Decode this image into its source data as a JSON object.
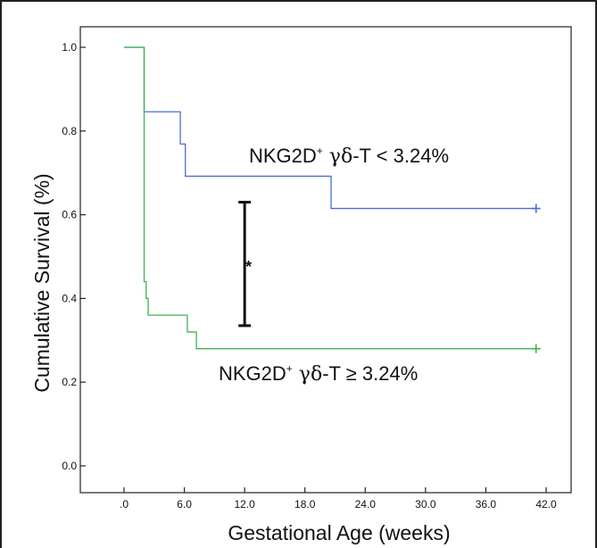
{
  "chart_data": {
    "type": "line",
    "chart_style": "kaplan-meier survival (step)",
    "xlabel": "Gestational Age (weeks)",
    "ylabel": "Cumulative Survival (%)",
    "xlim": [
      0,
      42
    ],
    "ylim": [
      0,
      1.0
    ],
    "x_tick_labels": [
      ".0",
      "6.0",
      "12.0",
      "18.0",
      "24.0",
      "30.0",
      "36.0",
      "42.0"
    ],
    "x_tick_values": [
      0,
      6,
      12,
      18,
      24,
      30,
      36,
      42
    ],
    "y_tick_labels": [
      "0.0",
      "0.2",
      "0.4",
      "0.6",
      "0.8",
      "1.0"
    ],
    "y_tick_values": [
      0,
      0.2,
      0.4,
      0.6,
      0.8,
      1.0
    ],
    "grid": false,
    "series": [
      {
        "color": "#4a6fcf",
        "steps": [
          {
            "x": 0,
            "y": 1.0
          },
          {
            "x": 2.0,
            "y": 0.846
          },
          {
            "x": 5.6,
            "y": 0.769
          },
          {
            "x": 6.1,
            "y": 0.692
          },
          {
            "x": 20.6,
            "y": 0.615
          }
        ],
        "end_x": 41.0,
        "censor": [
          {
            "x": 41.0,
            "y": 0.615
          }
        ]
      },
      {
        "color": "#3fb34f",
        "steps": [
          {
            "x": 0,
            "y": 1.0
          },
          {
            "x": 2.0,
            "y": 0.44
          },
          {
            "x": 2.2,
            "y": 0.4
          },
          {
            "x": 2.4,
            "y": 0.36
          },
          {
            "x": 6.3,
            "y": 0.32
          },
          {
            "x": 7.2,
            "y": 0.28
          }
        ],
        "end_x": 41.0,
        "censor": [
          {
            "x": 41.0,
            "y": 0.28
          }
        ]
      }
    ],
    "annotations": [
      {
        "prefix": "NKG2D",
        "sup": "+",
        "greek": " γδ",
        "suffix": "-T < 3.24%"
      },
      {
        "prefix": "NKG2D",
        "sup": "+",
        "greek": " γδ",
        "suffix": "-T ≥ 3.24%"
      },
      {
        "text": "*"
      }
    ],
    "significance_bar": {
      "y_top": 0.63,
      "y_bottom": 0.335,
      "x": 12.0
    }
  }
}
